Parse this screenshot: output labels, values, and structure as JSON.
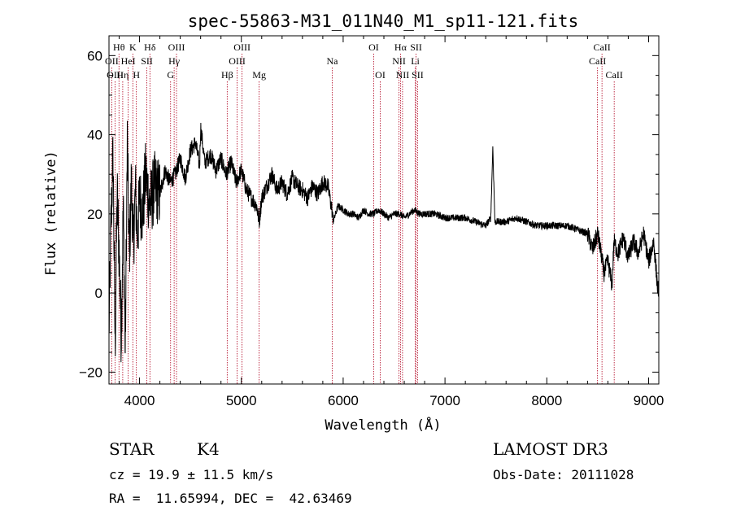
{
  "chart_data": {
    "type": "line",
    "title": "spec-55863-M31_011N40_M1_sp11-121.fits",
    "xlabel": "Wavelength (Å)",
    "ylabel": "Flux (relative)",
    "xlim": [
      3700,
      9100
    ],
    "ylim": [
      -23,
      65
    ],
    "xticks": [
      4000,
      5000,
      6000,
      7000,
      8000,
      9000
    ],
    "yticks": [
      -20,
      0,
      20,
      40,
      60
    ],
    "spectrum": {
      "name": "flux",
      "x": [
        3700,
        3720,
        3740,
        3760,
        3780,
        3800,
        3820,
        3840,
        3860,
        3880,
        3900,
        3920,
        3940,
        3960,
        3980,
        4000,
        4030,
        4060,
        4100,
        4150,
        4200,
        4250,
        4300,
        4350,
        4400,
        4450,
        4500,
        4550,
        4590,
        4600,
        4640,
        4700,
        4750,
        4800,
        4850,
        4900,
        4950,
        5000,
        5050,
        5100,
        5150,
        5175,
        5200,
        5250,
        5300,
        5350,
        5400,
        5450,
        5500,
        5550,
        5600,
        5650,
        5700,
        5750,
        5800,
        5850,
        5890,
        5900,
        5950,
        6000,
        6050,
        6100,
        6150,
        6200,
        6250,
        6300,
        6350,
        6400,
        6450,
        6500,
        6560,
        6600,
        6650,
        6700,
        6750,
        6800,
        6900,
        7000,
        7100,
        7200,
        7300,
        7400,
        7450,
        7470,
        7490,
        7550,
        7600,
        7700,
        7800,
        7900,
        8000,
        8100,
        8200,
        8300,
        8400,
        8450,
        8500,
        8540,
        8560,
        8600,
        8640,
        8660,
        8700,
        8750,
        8800,
        8850,
        8900,
        8950,
        9000,
        9050,
        9090
      ],
      "y": [
        -9,
        18,
        35,
        -14,
        25,
        10,
        -11,
        22,
        -15,
        38,
        9,
        28,
        12,
        26,
        14,
        24,
        20,
        30,
        22,
        27,
        25,
        31,
        28,
        30,
        34,
        29,
        36,
        38,
        32,
        42,
        33,
        35,
        31,
        34,
        30,
        33,
        28,
        31,
        26,
        24,
        22,
        18,
        24,
        27,
        30,
        26,
        28,
        25,
        29,
        27,
        26,
        24,
        27,
        25,
        28,
        27,
        21,
        18,
        22,
        21,
        20,
        20,
        19,
        21,
        20,
        20,
        21,
        20,
        19,
        20,
        20,
        19,
        20,
        21,
        20,
        20,
        20,
        19,
        19,
        19,
        18,
        17,
        19,
        37,
        18,
        18,
        18,
        19,
        18,
        17,
        17,
        17,
        17,
        16,
        15,
        11,
        15,
        9,
        5,
        8,
        2,
        13,
        10,
        14,
        9,
        13,
        10,
        15,
        8,
        13,
        1
      ]
    },
    "line_markers": [
      {
        "name": "Hθ",
        "x": 3798,
        "row": 1
      },
      {
        "name": "OII",
        "x": 3727,
        "row": 2
      },
      {
        "name": "OIII",
        "x": 3760,
        "row": 3
      },
      {
        "name": "Hη",
        "x": 3835,
        "row": 3
      },
      {
        "name": "HeI",
        "x": 3889,
        "row": 2
      },
      {
        "name": "K",
        "x": 3934,
        "row": 1
      },
      {
        "name": "SII",
        "x": 4072,
        "row": 2
      },
      {
        "name": "H",
        "x": 3969,
        "row": 3
      },
      {
        "name": "Hδ",
        "x": 4102,
        "row": 1
      },
      {
        "name": "OIII",
        "x": 4363,
        "row": 1
      },
      {
        "name": "Hγ",
        "x": 4340,
        "row": 2
      },
      {
        "name": "G",
        "x": 4305,
        "row": 3
      },
      {
        "name": "Hβ",
        "x": 4861,
        "row": 3
      },
      {
        "name": "OIII",
        "x": 5007,
        "row": 1
      },
      {
        "name": "OIII",
        "x": 4959,
        "row": 2
      },
      {
        "name": "Mg",
        "x": 5175,
        "row": 3
      },
      {
        "name": "Na",
        "x": 5893,
        "row": 2
      },
      {
        "name": "OI",
        "x": 6300,
        "row": 1
      },
      {
        "name": "OI",
        "x": 6364,
        "row": 3
      },
      {
        "name": "Hα",
        "x": 6563,
        "row": 1
      },
      {
        "name": "NII",
        "x": 6548,
        "row": 2
      },
      {
        "name": "NII",
        "x": 6583,
        "row": 3
      },
      {
        "name": "SII",
        "x": 6716,
        "row": 1
      },
      {
        "name": "Li",
        "x": 6708,
        "row": 2
      },
      {
        "name": "SII",
        "x": 6731,
        "row": 3
      },
      {
        "name": "CaII",
        "x": 8542,
        "row": 1
      },
      {
        "name": "CaII",
        "x": 8498,
        "row": 2
      },
      {
        "name": "CaII",
        "x": 8662,
        "row": 3
      }
    ]
  },
  "info": {
    "object_class": "STAR",
    "subclass": "K4",
    "survey": "LAMOST DR3",
    "redshift": "cz = 19.9 ± 11.5 km/s",
    "obs_date": "Obs-Date: 20111028",
    "coords": "RA =  11.65994, DEC =  42.63469"
  },
  "colors": {
    "marker": "#b0001e",
    "spectrum": "#000000",
    "axis": "#000000"
  }
}
